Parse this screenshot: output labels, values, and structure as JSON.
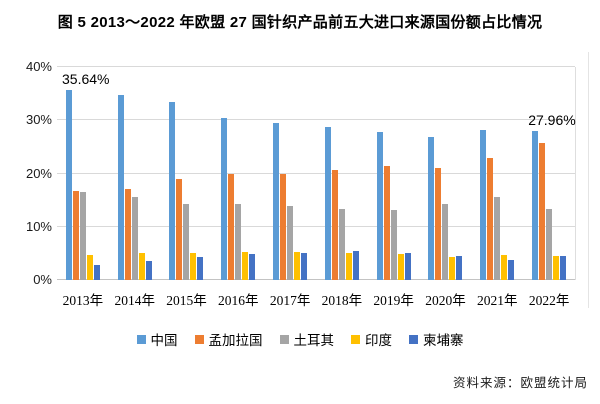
{
  "title": "图 5  2013～2022 年欧盟 27 国针织产品前五大进口来源国份额占比情况",
  "source_note": "资料来源：欧盟统计局",
  "chart_data": {
    "type": "bar",
    "title": "2013～2022 年欧盟 27 国针织产品前五大进口来源国份额占比情况",
    "xlabel": "",
    "ylabel": "",
    "ylim": [
      0,
      40
    ],
    "yticks": [
      "0%",
      "10%",
      "20%",
      "30%",
      "40%"
    ],
    "grid": true,
    "legend_position": "bottom",
    "categories": [
      "2013年",
      "2014年",
      "2015年",
      "2016年",
      "2017年",
      "2018年",
      "2019年",
      "2020年",
      "2021年",
      "2022年"
    ],
    "series": [
      {
        "name": "中国",
        "color": "#5B9BD5",
        "values": [
          35.64,
          34.8,
          33.4,
          30.4,
          29.5,
          28.8,
          27.8,
          26.8,
          28.2,
          27.96
        ]
      },
      {
        "name": "孟加拉国",
        "color": "#ED7D31",
        "values": [
          16.7,
          17.1,
          19.0,
          20.0,
          20.0,
          20.7,
          21.4,
          21.1,
          23.0,
          25.8
        ]
      },
      {
        "name": "土耳其",
        "color": "#A5A5A5",
        "values": [
          16.5,
          15.5,
          14.2,
          14.3,
          13.9,
          13.3,
          13.1,
          14.3,
          15.5,
          13.3
        ]
      },
      {
        "name": "印度",
        "color": "#FFC000",
        "values": [
          4.7,
          5.1,
          5.1,
          5.2,
          5.2,
          5.0,
          4.8,
          4.4,
          4.7,
          4.6
        ]
      },
      {
        "name": "柬埔寨",
        "color": "#4472C4",
        "values": [
          2.9,
          3.6,
          4.3,
          4.8,
          5.1,
          5.5,
          5.1,
          4.6,
          3.7,
          4.6
        ]
      }
    ],
    "annotations": [
      {
        "text": "35.64%",
        "series": "中国",
        "category": "2013年"
      },
      {
        "text": "27.96%",
        "series": "中国",
        "category": "2022年"
      }
    ]
  }
}
